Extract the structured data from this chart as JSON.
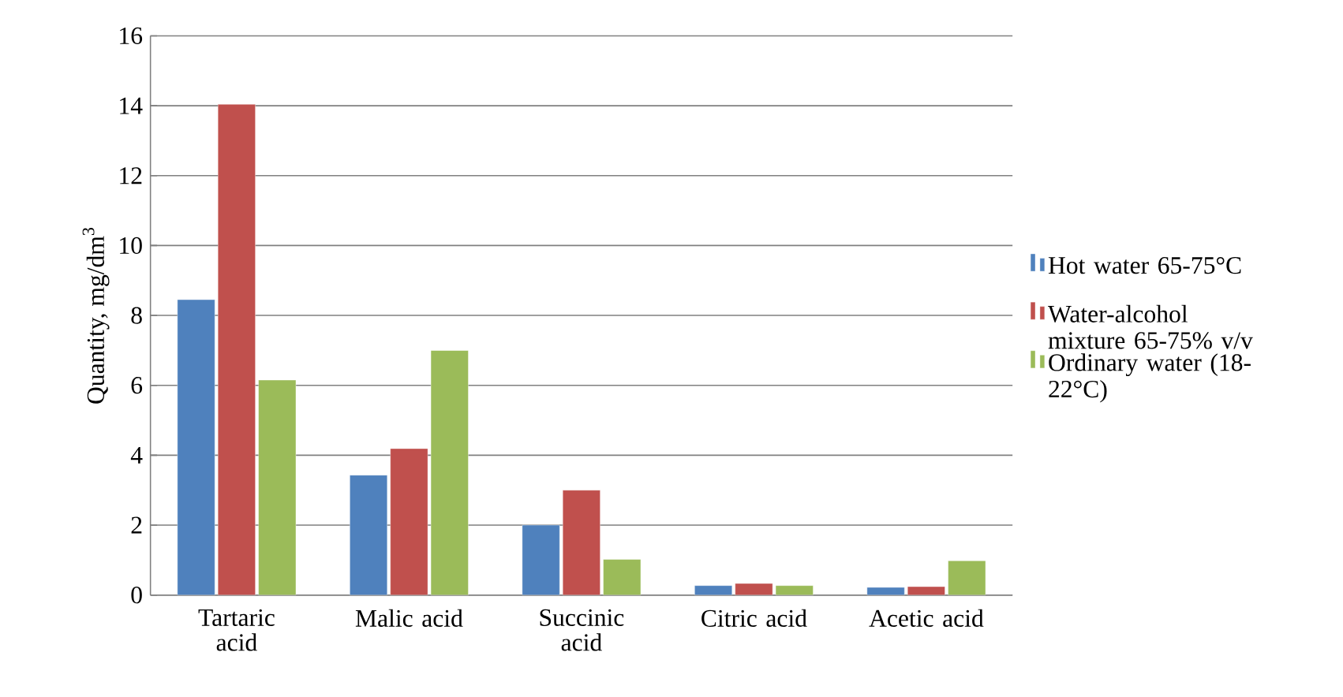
{
  "chart_data": {
    "type": "bar",
    "ylabel": "Quantity, mg/dm$^{3}$",
    "categories": [
      "Tartaric acid",
      "Malic acid",
      "Succinic acid",
      "Citric acid",
      "Acetic acid"
    ],
    "series": [
      {
        "name": "Hot water 65-75°C",
        "color": "#4f81bd",
        "values": [
          8.45,
          3.43,
          2.0,
          0.27,
          0.22
        ]
      },
      {
        "name": "Water-alcohol mixture 65-75% v/v",
        "color": "#c0504d",
        "values": [
          14.04,
          4.19,
          3.0,
          0.33,
          0.24
        ]
      },
      {
        "name": "Ordinary water (18-22°C)",
        "color": "#9bbb59",
        "values": [
          6.15,
          7.0,
          1.02,
          0.27,
          0.98
        ]
      }
    ],
    "ylim": [
      0,
      16
    ],
    "yticks": [
      0,
      2,
      4,
      6,
      8,
      10,
      12,
      14,
      16
    ],
    "grid": "y",
    "legend": "right"
  }
}
